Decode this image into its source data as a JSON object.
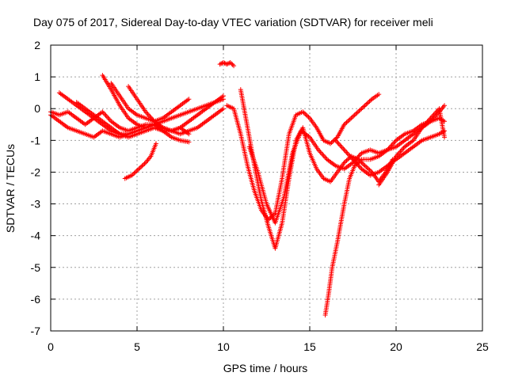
{
  "chart_data": {
    "type": "scatter",
    "title": "Day 075 of 2017, Sidereal Day-to-day VTEC variation (SDTVAR) for receiver meli",
    "xlabel": "GPS time / hours",
    "ylabel": "SDTVAR / TECUs",
    "xlim": [
      0,
      25
    ],
    "ylim": [
      -7,
      2
    ],
    "xticks": [
      0,
      5,
      10,
      15,
      20,
      25
    ],
    "yticks": [
      -7,
      -6,
      -5,
      -4,
      -3,
      -2,
      -1,
      0,
      1,
      2
    ],
    "grid": true,
    "marker": "plus",
    "color": "#ff0000",
    "series": [
      {
        "x": [
          0,
          0.5,
          1,
          1.5,
          2,
          2.5,
          3,
          3.5,
          4,
          4.5,
          5,
          5.5,
          6,
          6.5,
          7,
          7.5,
          8
        ],
        "y": [
          -0.1,
          -0.2,
          -0.1,
          -0.3,
          -0.5,
          -0.3,
          -0.1,
          -0.4,
          -0.6,
          -0.7,
          -0.6,
          -0.5,
          -0.5,
          -0.7,
          -0.7,
          -0.6,
          -0.8
        ]
      },
      {
        "x": [
          0,
          0.5,
          1,
          1.5,
          2,
          2.5,
          3,
          3.5,
          4,
          4.5
        ],
        "y": [
          -0.2,
          -0.4,
          -0.6,
          -0.7,
          -0.8,
          -0.9,
          -0.7,
          -0.8,
          -0.9,
          -0.8
        ]
      },
      {
        "x": [
          0.5,
          1,
          1.5,
          2,
          2.5,
          3,
          3.5,
          4,
          4.5,
          5,
          5.5,
          6,
          6.5,
          7,
          7.5,
          8,
          8.5,
          9,
          9.5,
          10
        ],
        "y": [
          0.5,
          0.3,
          0.1,
          -0.1,
          -0.3,
          -0.5,
          -0.7,
          -0.8,
          -0.8,
          -0.7,
          -0.6,
          -0.5,
          -0.6,
          -0.7,
          -0.8,
          -0.7,
          -0.6,
          -0.4,
          -0.2,
          0.0
        ]
      },
      {
        "x": [
          1.5,
          2,
          2.5,
          3,
          3.5,
          4,
          4.5,
          5,
          5.5,
          6,
          6.5,
          7,
          7.5,
          8
        ],
        "y": [
          0.2,
          0.0,
          -0.2,
          -0.4,
          -0.6,
          -0.8,
          -0.9,
          -0.8,
          -0.7,
          -0.6,
          -0.7,
          -0.9,
          -1.0,
          -1.05
        ]
      },
      {
        "x": [
          3,
          3.5,
          4,
          4.5,
          5,
          5.5,
          6,
          6.5,
          7,
          7.5,
          8,
          8.5,
          9,
          9.5,
          10
        ],
        "y": [
          1.05,
          0.6,
          0.1,
          -0.3,
          -0.5,
          -0.6,
          -0.5,
          -0.4,
          -0.3,
          -0.2,
          -0.1,
          0.0,
          0.1,
          0.2,
          0.3
        ]
      },
      {
        "x": [
          3.5,
          4,
          4.5,
          5,
          5.5,
          6,
          6.5,
          7,
          7.5,
          8
        ],
        "y": [
          0.8,
          0.4,
          0.0,
          -0.2,
          -0.3,
          -0.4,
          -0.3,
          -0.1,
          0.1,
          0.3
        ]
      },
      {
        "x": [
          4.5,
          5,
          5.5,
          6,
          6.5,
          7,
          7.5,
          8,
          8.5,
          9,
          9.5,
          10
        ],
        "y": [
          0.7,
          0.3,
          -0.1,
          -0.4,
          -0.6,
          -0.7,
          -0.6,
          -0.4,
          -0.2,
          0.0,
          0.2,
          0.4
        ]
      },
      {
        "x": [
          4.3,
          4.7,
          5.1,
          5.5,
          5.8,
          6.1
        ],
        "y": [
          -2.2,
          -2.1,
          -1.9,
          -1.7,
          -1.5,
          -1.1
        ]
      },
      {
        "x": [
          9.8,
          10,
          10.2,
          10.4,
          10.6
        ],
        "y": [
          1.4,
          1.45,
          1.4,
          1.45,
          1.35
        ]
      },
      {
        "x": [
          10.2,
          10.6,
          11,
          11.4,
          11.8,
          12.2,
          12.6,
          13,
          13.4,
          13.8,
          14.2,
          14.6,
          15,
          15.4,
          15.8,
          16.2,
          16.6,
          17,
          17.4,
          17.8,
          18.2,
          18.6,
          19
        ],
        "y": [
          0.1,
          0.0,
          -0.8,
          -1.8,
          -2.6,
          -3.2,
          -3.5,
          -3.3,
          -2.2,
          -0.8,
          -0.2,
          -0.1,
          -0.3,
          -0.6,
          -1.0,
          -1.1,
          -0.9,
          -0.5,
          -0.3,
          -0.1,
          0.1,
          0.3,
          0.45
        ]
      },
      {
        "x": [
          11,
          11.4,
          11.8,
          12.2,
          12.6,
          13,
          13.4,
          13.8,
          14.2,
          14.6,
          15,
          15.4,
          15.8,
          16.2,
          16.6,
          17,
          17.4,
          17.8,
          18.2,
          18.6,
          19,
          19.4,
          19.8
        ],
        "y": [
          0.6,
          -0.6,
          -1.8,
          -2.9,
          -3.7,
          -4.4,
          -3.6,
          -2.2,
          -1.0,
          -0.6,
          -1.4,
          -1.9,
          -2.2,
          -2.3,
          -2.0,
          -1.7,
          -1.5,
          -1.6,
          -1.8,
          -2.0,
          -2.3,
          -2.0,
          -1.6
        ]
      },
      {
        "x": [
          11.5,
          12,
          12.5,
          13,
          13.5,
          14,
          14.5,
          15,
          15.5,
          16,
          16.5,
          17,
          17.5,
          18,
          18.5,
          19,
          19.5,
          20,
          20.5,
          21,
          21.5,
          22,
          22.5,
          22.8
        ],
        "y": [
          -1.2,
          -2.0,
          -3.0,
          -3.6,
          -2.8,
          -1.4,
          -0.7,
          -0.9,
          -1.3,
          -1.6,
          -1.8,
          -1.9,
          -1.7,
          -1.4,
          -1.3,
          -1.4,
          -1.3,
          -1.0,
          -0.8,
          -0.7,
          -0.5,
          -0.4,
          -0.3,
          -0.4
        ]
      },
      {
        "x": [
          15.9,
          16.1,
          16.3,
          16.6,
          17,
          17.3,
          17.6,
          18,
          18.5,
          19,
          19.5,
          20,
          20.5,
          21,
          21.5,
          22,
          22.5,
          22.8
        ],
        "y": [
          -6.5,
          -5.8,
          -5.0,
          -4.2,
          -3.0,
          -2.2,
          -1.8,
          -1.6,
          -1.6,
          -1.5,
          -1.3,
          -1.2,
          -1.0,
          -0.8,
          -0.6,
          -0.4,
          -0.1,
          0.1
        ]
      },
      {
        "x": [
          16.5,
          17,
          17.5,
          18,
          18.5,
          19,
          19.5,
          20,
          20.5,
          21,
          21.5,
          22,
          22.5,
          22.8
        ],
        "y": [
          -1.0,
          -1.3,
          -1.6,
          -1.9,
          -2.1,
          -2.0,
          -1.8,
          -1.6,
          -1.4,
          -1.2,
          -1.0,
          -0.9,
          -0.8,
          -0.7
        ]
      },
      {
        "x": [
          19,
          19.5,
          20,
          20.5,
          21,
          21.5,
          22,
          22.5,
          22.8
        ],
        "y": [
          -2.4,
          -2.0,
          -1.5,
          -1.2,
          -1.0,
          -0.6,
          -0.3,
          0.0,
          -0.9
        ]
      }
    ]
  }
}
